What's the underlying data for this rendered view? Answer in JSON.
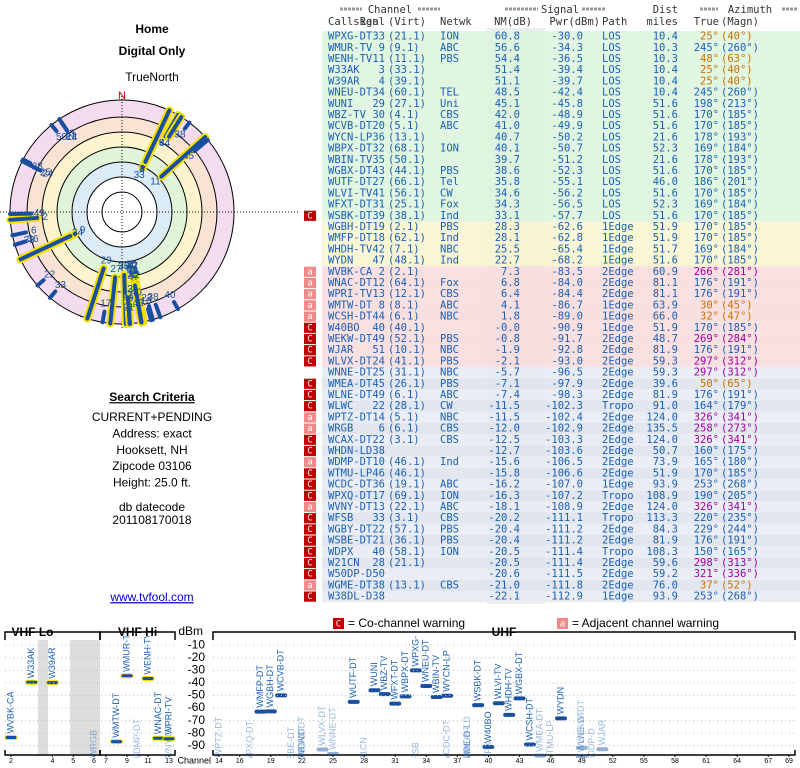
{
  "header": {
    "title": "Home",
    "subtitle": "Digital Only",
    "north_label": "TrueNorth",
    "north": "N"
  },
  "search": {
    "heading": "Search Criteria",
    "lines": [
      "CURRENT+PENDING",
      "Address: exact",
      "Hooksett, NH",
      "Zipcode 03106",
      "Height: 25.0 ft."
    ]
  },
  "datecode": {
    "label": "db datecode",
    "value": "201108170018"
  },
  "link": "www.tvfool.com",
  "table": {
    "groups": [
      "Channel",
      "Signal",
      "Dist",
      "Azimuth"
    ],
    "columns": [
      "Callsign",
      "Real",
      "(Virt)",
      "Netwk",
      "NM(dB)",
      "Pwr(dBm)",
      "Path",
      "miles",
      "True",
      "(Magn)"
    ],
    "rows": [
      [
        null,
        "WPXG-DT",
        "33",
        "(21.1)",
        "ION",
        "60.8",
        "-30.0",
        "LOS",
        "10.4",
        "25°",
        "(40°)"
      ],
      [
        null,
        "WMUR-TV",
        "9",
        "(9.1)",
        "ABC",
        "56.6",
        "-34.3",
        "LOS",
        "10.3",
        "245°",
        "(260°)"
      ],
      [
        null,
        "WENH-TV",
        "11",
        "(11.1)",
        "PBS",
        "54.4",
        "-36.5",
        "LOS",
        "10.3",
        "48°",
        "(63°)"
      ],
      [
        null,
        "W33AK",
        "3",
        "(33.1)",
        null,
        "51.4",
        "-39.4",
        "LOS",
        "10.4",
        "25°",
        "(40°)"
      ],
      [
        null,
        "W39AR",
        "4",
        "(39.1)",
        null,
        "51.1",
        "-39.7",
        "LOS",
        "10.4",
        "25°",
        "(40°)"
      ],
      [
        null,
        "WNEU-DT",
        "34",
        "(60.1)",
        "TEL",
        "48.5",
        "-42.4",
        "LOS",
        "10.4",
        "245°",
        "(260°)"
      ],
      [
        null,
        "WUNI",
        "29",
        "(27.1)",
        "Uni",
        "45.1",
        "-45.8",
        "LOS",
        "51.6",
        "198°",
        "(213°)"
      ],
      [
        null,
        "WBZ-TV",
        "30",
        "(4.1)",
        "CBS",
        "42.0",
        "-48.9",
        "LOS",
        "51.6",
        "170°",
        "(185°)"
      ],
      [
        null,
        "WCVB-DT",
        "20",
        "(5.1)",
        "ABC",
        "41.0",
        "-49.9",
        "LOS",
        "51.6",
        "170°",
        "(185°)"
      ],
      [
        null,
        "WYCN-LP",
        "36",
        "(13.1)",
        null,
        "40.7",
        "-50.2",
        "LOS",
        "21.6",
        "178°",
        "(193°)"
      ],
      [
        null,
        "WBPX-DT",
        "32",
        "(68.1)",
        "ION",
        "40.1",
        "-50.7",
        "LOS",
        "52.3",
        "169°",
        "(184°)"
      ],
      [
        null,
        "WBIN-TV",
        "35",
        "(50.1)",
        null,
        "39.7",
        "-51.2",
        "LOS",
        "21.6",
        "178°",
        "(193°)"
      ],
      [
        null,
        "WGBX-DT",
        "43",
        "(44.1)",
        "PBS",
        "38.6",
        "-52.3",
        "LOS",
        "51.6",
        "170°",
        "(185°)"
      ],
      [
        null,
        "WUTF-DT",
        "27",
        "(66.1)",
        "Tel",
        "35.8",
        "-55.1",
        "LOS",
        "46.0",
        "186°",
        "(201°)"
      ],
      [
        null,
        "WLVI-TV",
        "41",
        "(56.1)",
        "CW",
        "34.6",
        "-56.2",
        "LOS",
        "51.6",
        "170°",
        "(185°)"
      ],
      [
        null,
        "WFXT-DT",
        "31",
        "(25.1)",
        "Fox",
        "34.3",
        "-56.5",
        "LOS",
        "52.3",
        "169°",
        "(184°)"
      ],
      [
        "C",
        "WSBK-DT",
        "39",
        "(38.1)",
        "Ind",
        "33.1",
        "-57.7",
        "LOS",
        "51.6",
        "170°",
        "(185°)"
      ],
      [
        null,
        "WGBH-DT",
        "19",
        "(2.1)",
        "PBS",
        "28.3",
        "-62.6",
        "1Edge",
        "51.9",
        "170°",
        "(185°)"
      ],
      [
        null,
        "WMFP-DT",
        "18",
        "(62.1)",
        "Ind",
        "28.1",
        "-62.8",
        "1Edge",
        "51.9",
        "170°",
        "(185°)"
      ],
      [
        null,
        "WHDH-TV",
        "42",
        "(7.1)",
        "NBC",
        "25.5",
        "-65.4",
        "1Edge",
        "51.7",
        "169°",
        "(184°)"
      ],
      [
        null,
        "WYDN",
        "47",
        "(48.1)",
        "Ind",
        "22.7",
        "-68.2",
        "1Edge",
        "51.6",
        "170°",
        "(185°)"
      ],
      [
        "a",
        "WVBK-CA",
        "2",
        "(2.1)",
        null,
        "7.3",
        "-83.5",
        "2Edge",
        "60.9",
        "266°",
        "(281°)"
      ],
      [
        "a",
        "WNAC-DT",
        "12",
        "(64.1)",
        "Fox",
        "6.8",
        "-84.0",
        "2Edge",
        "81.1",
        "176°",
        "(191°)"
      ],
      [
        "a",
        "WPRI-TV",
        "13",
        "(12.1)",
        "CBS",
        "6.4",
        "-84.4",
        "2Edge",
        "81.1",
        "176°",
        "(191°)"
      ],
      [
        "a",
        "WMTW-DT",
        "8",
        "(8.1)",
        "ABC",
        "4.1",
        "-86.7",
        "1Edge",
        "63.9",
        "30°",
        "(45°)"
      ],
      [
        "a",
        "WCSH-DT",
        "44",
        "(6.1)",
        "NBC",
        "1.8",
        "-89.0",
        "1Edge",
        "66.0",
        "32°",
        "(47°)"
      ],
      [
        "C",
        "W40BO",
        "40",
        "(40.1)",
        null,
        "-0.0",
        "-90.9",
        "1Edge",
        "51.9",
        "170°",
        "(185°)"
      ],
      [
        "C",
        "WEKW-DT",
        "49",
        "(52.1)",
        "PBS",
        "-0.8",
        "-91.7",
        "2Edge",
        "48.7",
        "269°",
        "(284°)"
      ],
      [
        "C",
        "WJAR",
        "51",
        "(10.1)",
        "NBC",
        "-1.9",
        "-92.8",
        "2Edge",
        "81.9",
        "176°",
        "(191°)"
      ],
      [
        "C",
        "WLVX-DT",
        "24",
        "(41.1)",
        "PBS",
        "-2.1",
        "-93.0",
        "2Edge",
        "59.3",
        "297°",
        "(312°)"
      ],
      [
        null,
        "WNNE-DT",
        "25",
        "(31.1)",
        "NBC",
        "-5.7",
        "-96.5",
        "2Edge",
        "59.3",
        "297°",
        "(312°)"
      ],
      [
        "C",
        "WMEA-DT",
        "45",
        "(26.1)",
        "PBS",
        "-7.1",
        "-97.9",
        "2Edge",
        "39.6",
        "50°",
        "(65°)"
      ],
      [
        "C",
        "WLNE-DT",
        "49",
        "(6.1)",
        "ABC",
        "-7.4",
        "-98.3",
        "2Edge",
        "81.9",
        "176°",
        "(191°)"
      ],
      [
        "C",
        "WLWC",
        "22",
        "(28.1)",
        "CW",
        "-11.5",
        "-102.3",
        "Tropo",
        "91.0",
        "164°",
        "(179°)"
      ],
      [
        "a",
        "WPTZ-DT",
        "14",
        "(5.1)",
        "NBC",
        "-11.5",
        "-102.4",
        "2Edge",
        "124.0",
        "326°",
        "(341°)"
      ],
      [
        "a",
        "WRGB",
        "6",
        "(6.1)",
        "CBS",
        "-12.0",
        "-102.9",
        "2Edge",
        "135.5",
        "258°",
        "(273°)"
      ],
      [
        "C",
        "WCAX-DT",
        "22",
        "(3.1)",
        "CBS",
        "-12.5",
        "-103.3",
        "2Edge",
        "124.0",
        "326°",
        "(341°)"
      ],
      [
        "C",
        "WHDN-LD",
        "38",
        null,
        null,
        "-12.7",
        "-103.6",
        "2Edge",
        "50.7",
        "160°",
        "(175°)"
      ],
      [
        "a",
        "WDMP-DT",
        "10",
        "(46.1)",
        "Ind",
        "-15.6",
        "-106.5",
        "2Edge",
        "73.9",
        "165°",
        "(180°)"
      ],
      [
        "C",
        "WTMU-LP",
        "46",
        "(46.1)",
        null,
        "-15.8",
        "-106.6",
        "2Edge",
        "51.9",
        "170°",
        "(185°)"
      ],
      [
        "C",
        "WCDC-DT",
        "36",
        "(19.1)",
        "ABC",
        "-16.2",
        "-107.0",
        "1Edge",
        "93.9",
        "253°",
        "(268°)"
      ],
      [
        "C",
        "WPXQ-DT",
        "17",
        "(69.1)",
        "ION",
        "-16.3",
        "-107.2",
        "Tropo",
        "108.9",
        "190°",
        "(205°)"
      ],
      [
        "a",
        "WVNY-DT",
        "13",
        "(22.1)",
        "ABC",
        "-18.1",
        "-108.9",
        "2Edge",
        "124.0",
        "326°",
        "(341°)"
      ],
      [
        "C",
        "WFSB",
        "33",
        "(3.1)",
        "CBS",
        "-20.2",
        "-111.1",
        "Tropo",
        "113.3",
        "220°",
        "(235°)"
      ],
      [
        "C",
        "WGBY-DT",
        "22",
        "(57.1)",
        "PBS",
        "-20.4",
        "-111.2",
        "2Edge",
        "84.3",
        "229°",
        "(244°)"
      ],
      [
        "C",
        "WSBE-DT",
        "21",
        "(36.1)",
        "PBS",
        "-20.4",
        "-111.2",
        "2Edge",
        "81.9",
        "176°",
        "(191°)"
      ],
      [
        "C",
        "WDPX",
        "40",
        "(58.1)",
        "ION",
        "-20.5",
        "-111.4",
        "Tropo",
        "108.3",
        "150°",
        "(165°)"
      ],
      [
        "C",
        "W21CN",
        "28",
        "(21.1)",
        null,
        "-20.5",
        "-111.4",
        "2Edge",
        "59.6",
        "298°",
        "(313°)"
      ],
      [
        "C",
        "W50DP-D",
        "50",
        null,
        null,
        "-20.6",
        "-111.5",
        "2Edge",
        "59.2",
        "321°",
        "(336°)"
      ],
      [
        "a",
        "WGME-DT",
        "38",
        "(13.1)",
        "CBS",
        "-21.0",
        "-111.8",
        "2Edge",
        "76.0",
        "37°",
        "(52°)"
      ],
      [
        "C",
        "W38DL-D",
        "38",
        null,
        null,
        "-22.1",
        "-112.9",
        "1Edge",
        "93.9",
        "253°",
        "(268°)"
      ]
    ]
  },
  "spectrum": {
    "legend": [
      {
        "key": "C",
        "text": "= Co-channel warning"
      },
      {
        "key": "a",
        "text": "= Adjacent channel warning"
      }
    ],
    "bands": [
      {
        "label": "VHF Lo",
        "xlim": [
          2,
          6
        ],
        "xticks": [
          2,
          4,
          5,
          6
        ]
      },
      {
        "label": "VHF Hi",
        "xlim": [
          7,
          13
        ],
        "xticks": [
          7,
          9,
          11,
          13
        ]
      },
      {
        "label": "UHF",
        "xlim": [
          14,
          69
        ],
        "xticks": [
          14,
          16,
          19,
          22,
          25,
          28,
          31,
          34,
          37,
          40,
          43,
          46,
          49,
          52,
          55,
          58,
          61,
          64,
          67,
          69
        ]
      }
    ],
    "y_label": "dBm",
    "x_label": "Channel",
    "ylim": [
      -95,
      -5
    ],
    "yticks": [
      -10,
      -20,
      -30,
      -40,
      -50,
      -60,
      -70,
      -80,
      -90
    ]
  }
}
